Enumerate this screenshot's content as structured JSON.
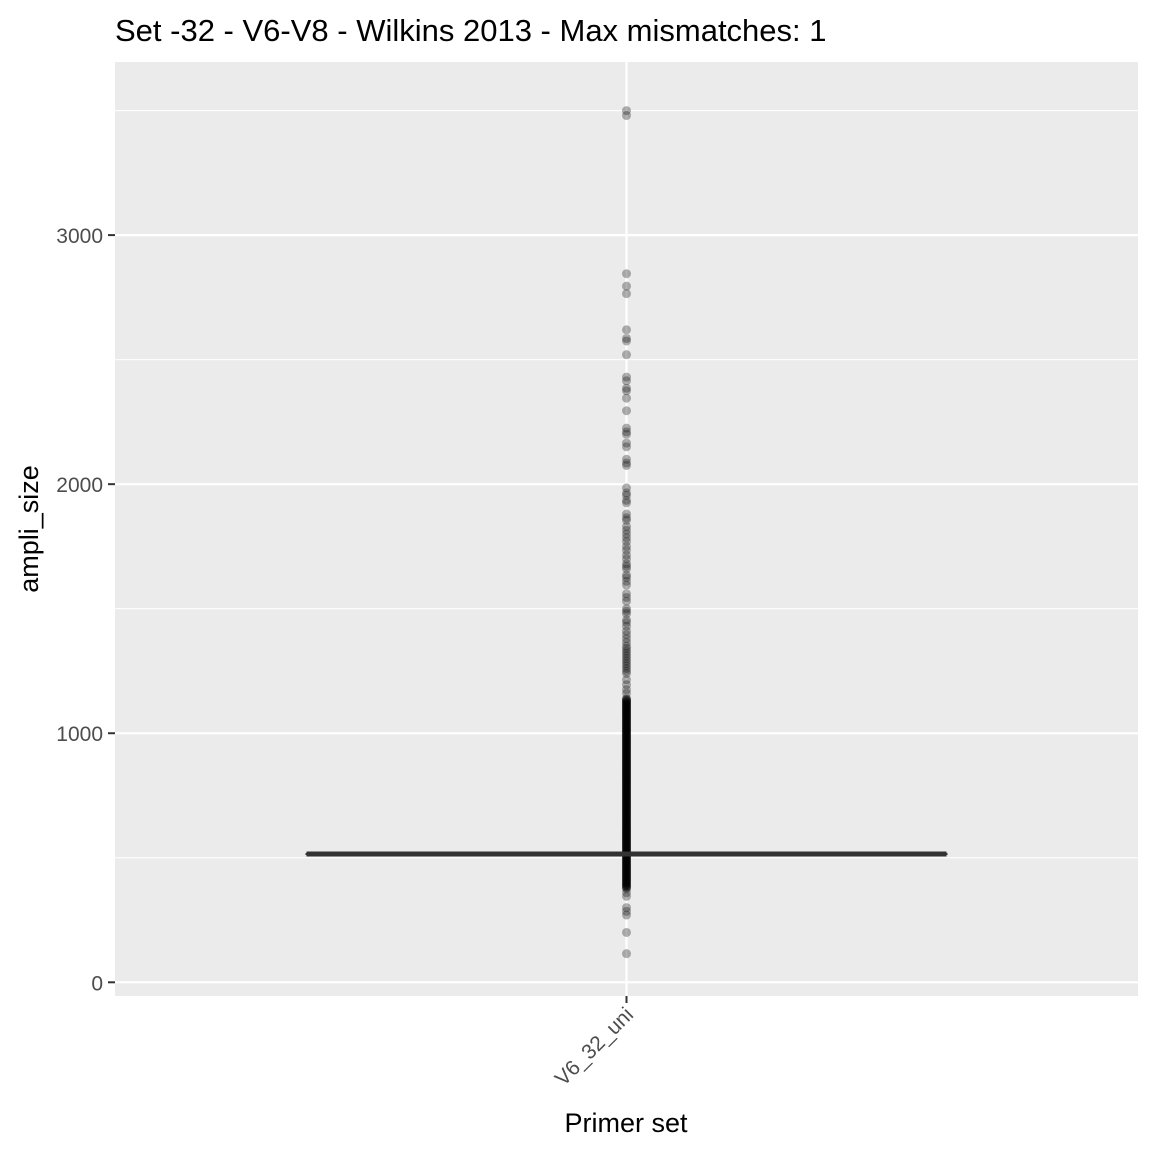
{
  "chart_data": {
    "type": "boxplot",
    "title": "Set -32 - V6-V8 - Wilkins 2013 - Max mismatches: 1",
    "xlabel": "Primer set",
    "ylabel": "ampli_size",
    "categories": [
      "V6_32_uni"
    ],
    "y_ticks": [
      0,
      1000,
      2000,
      3000
    ],
    "y_tick_labels": [
      "0",
      "1000",
      "2000",
      "3000"
    ],
    "ylim": [
      -55,
      3695
    ],
    "grid": true,
    "panel_color": "#ebebeb",
    "box": {
      "category": "V6_32_uni",
      "q1": 515,
      "median": 515,
      "q3": 515,
      "whisker_low": 515,
      "whisker_high": 515,
      "color": "#333333"
    },
    "dense_range": [
      380,
      1140
    ],
    "points": [
      3500,
      3480,
      2845,
      2795,
      2765,
      2620,
      2585,
      2575,
      2520,
      2430,
      2415,
      2385,
      2375,
      2345,
      2295,
      2225,
      2210,
      2200,
      2165,
      2150,
      2100,
      2085,
      2075,
      1985,
      1965,
      1955,
      1935,
      1925,
      1880,
      1865,
      1855,
      1830,
      1815,
      1800,
      1785,
      1770,
      1750,
      1735,
      1715,
      1700,
      1680,
      1670,
      1660,
      1635,
      1625,
      1610,
      1595,
      1560,
      1545,
      1530,
      1500,
      1490,
      1480,
      1455,
      1445,
      1430,
      1410,
      1395,
      1380,
      1365,
      1350,
      1340,
      1330,
      1320,
      1310,
      1300,
      1290,
      1280,
      1270,
      1260,
      1250,
      1240,
      1215,
      1195,
      1175,
      1160,
      375,
      360,
      345,
      300,
      285,
      270,
      200,
      115
    ],
    "point_color": "#000000",
    "point_alpha": 0.3
  }
}
